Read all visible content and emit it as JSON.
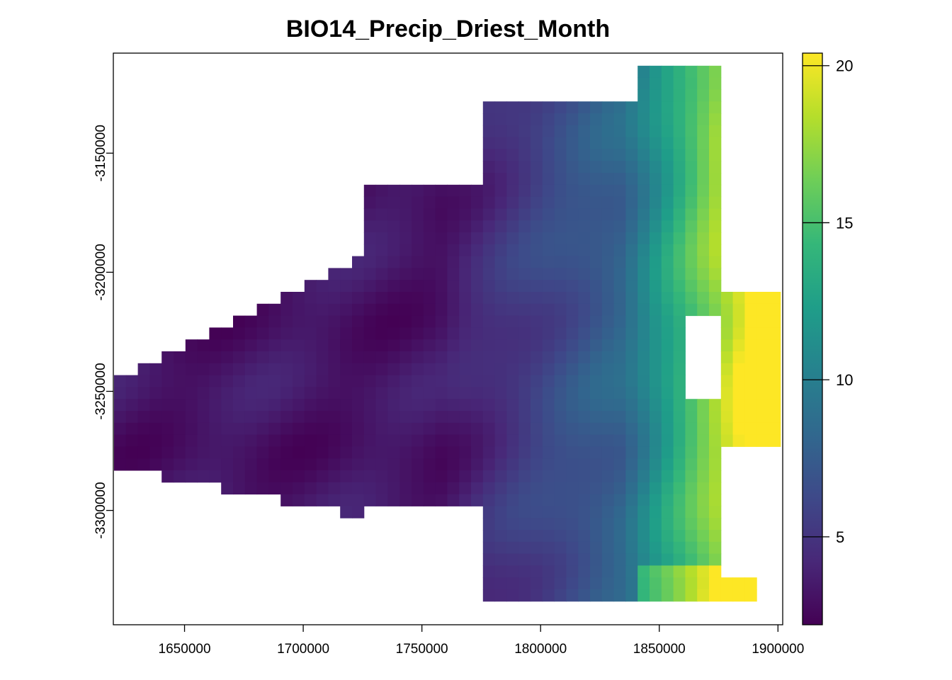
{
  "title": "BIO14_Precip_Driest_Month",
  "map": {
    "x_ticks": [
      {
        "value": 1650000,
        "label": "1650000"
      },
      {
        "value": 1700000,
        "label": "1700000"
      },
      {
        "value": 1750000,
        "label": "1750000"
      },
      {
        "value": 1800000,
        "label": "1800000"
      },
      {
        "value": 1850000,
        "label": "1850000"
      },
      {
        "value": 1900000,
        "label": "1900000"
      }
    ],
    "y_ticks": [
      {
        "value": -3150000,
        "label": "-3150000"
      },
      {
        "value": -3200000,
        "label": "-3200000"
      },
      {
        "value": -3250000,
        "label": "-3250000"
      },
      {
        "value": -3300000,
        "label": "-3300000"
      }
    ],
    "xlim": [
      1620000,
      1902000
    ],
    "ylim": [
      -3348000,
      -3108000
    ],
    "legend": {
      "range": [
        2.2,
        20.4
      ],
      "ticks": [
        {
          "value": 5,
          "label": "5"
        },
        {
          "value": 10,
          "label": "10"
        },
        {
          "value": 15,
          "label": "15"
        },
        {
          "value": 20,
          "label": "20"
        }
      ],
      "palette": [
        "#440154",
        "#482878",
        "#3e4989",
        "#31688e",
        "#26828e",
        "#1f9e89",
        "#35b779",
        "#6ece58",
        "#b5de2b",
        "#fde725"
      ]
    }
  }
}
